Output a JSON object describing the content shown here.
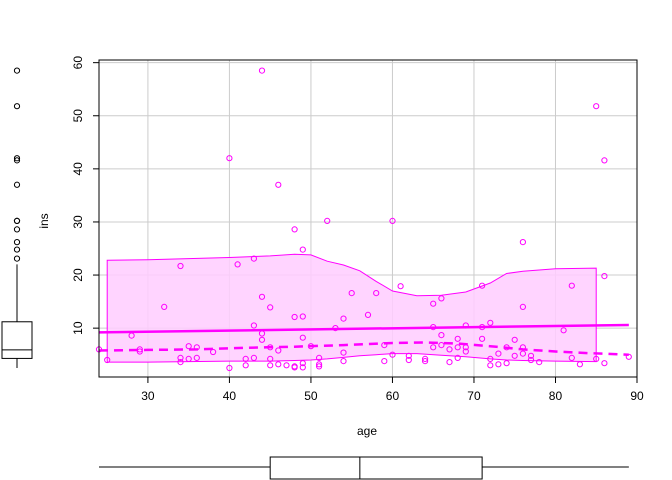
{
  "chart_data": {
    "type": "scatter",
    "title": "",
    "xlabel": "age",
    "ylabel": "ins",
    "xlim": [
      24,
      90
    ],
    "ylim": [
      0.8,
      60.5
    ],
    "xticks": [
      30,
      40,
      50,
      60,
      70,
      80,
      90
    ],
    "yticks": [
      10,
      20,
      30,
      40,
      50,
      60
    ],
    "grid": true,
    "colors": {
      "points": "#ff00ff",
      "band_fill": "#ffccff",
      "band_line": "#ff00ff",
      "axis": "#000000",
      "grid": "#cccccc"
    },
    "points": [
      [
        24,
        6.0
      ],
      [
        25,
        4.0
      ],
      [
        28,
        8.6
      ],
      [
        29,
        5.6
      ],
      [
        29,
        6.0
      ],
      [
        32,
        14.0
      ],
      [
        34,
        21.7
      ],
      [
        34,
        4.4
      ],
      [
        34,
        3.6
      ],
      [
        35,
        6.6
      ],
      [
        35,
        4.2
      ],
      [
        36,
        4.4
      ],
      [
        36,
        6.4
      ],
      [
        38,
        5.5
      ],
      [
        40,
        42.0
      ],
      [
        40,
        2.5
      ],
      [
        41,
        22.0
      ],
      [
        42,
        4.2
      ],
      [
        42,
        3.0
      ],
      [
        43,
        23.1
      ],
      [
        43,
        10.5
      ],
      [
        43,
        4.4
      ],
      [
        44,
        58.5
      ],
      [
        44,
        15.9
      ],
      [
        44,
        9.0
      ],
      [
        44,
        7.8
      ],
      [
        45,
        13.9
      ],
      [
        45,
        6.4
      ],
      [
        45,
        4.2
      ],
      [
        45,
        3.0
      ],
      [
        46,
        37.0
      ],
      [
        46,
        5.8
      ],
      [
        46,
        3.2
      ],
      [
        47,
        3.0
      ],
      [
        48,
        28.6
      ],
      [
        48,
        12.1
      ],
      [
        48,
        2.8
      ],
      [
        48,
        2.6
      ],
      [
        49,
        24.8
      ],
      [
        49,
        12.2
      ],
      [
        49,
        8.2
      ],
      [
        49,
        3.4
      ],
      [
        49,
        2.6
      ],
      [
        50,
        6.6
      ],
      [
        51,
        4.4
      ],
      [
        51,
        3.2
      ],
      [
        51,
        2.8
      ],
      [
        52,
        30.2
      ],
      [
        53,
        10.0
      ],
      [
        54,
        11.8
      ],
      [
        54,
        5.4
      ],
      [
        54,
        3.8
      ],
      [
        55,
        16.6
      ],
      [
        57,
        12.5
      ],
      [
        58,
        16.6
      ],
      [
        59,
        6.8
      ],
      [
        59,
        3.8
      ],
      [
        60,
        30.2
      ],
      [
        60,
        5.0
      ],
      [
        61,
        17.9
      ],
      [
        62,
        4.8
      ],
      [
        62,
        4.0
      ],
      [
        64,
        4.2
      ],
      [
        64,
        3.8
      ],
      [
        65,
        14.6
      ],
      [
        65,
        10.2
      ],
      [
        65,
        6.4
      ],
      [
        66,
        15.6
      ],
      [
        66,
        8.7
      ],
      [
        66,
        6.8
      ],
      [
        67,
        6.0
      ],
      [
        67,
        3.6
      ],
      [
        68,
        8.0
      ],
      [
        68,
        6.4
      ],
      [
        68,
        4.4
      ],
      [
        69,
        10.5
      ],
      [
        69,
        6.4
      ],
      [
        69,
        5.6
      ],
      [
        71,
        18.0
      ],
      [
        71,
        10.2
      ],
      [
        71,
        8.0
      ],
      [
        72,
        11.0
      ],
      [
        72,
        4.2
      ],
      [
        72,
        3.0
      ],
      [
        73,
        5.2
      ],
      [
        73,
        3.2
      ],
      [
        74,
        6.4
      ],
      [
        74,
        3.4
      ],
      [
        75,
        7.8
      ],
      [
        75,
        4.8
      ],
      [
        76,
        26.2
      ],
      [
        76,
        14.0
      ],
      [
        76,
        6.4
      ],
      [
        76,
        5.2
      ],
      [
        77,
        4.8
      ],
      [
        77,
        4.0
      ],
      [
        78,
        3.6
      ],
      [
        81,
        9.6
      ],
      [
        82,
        18.0
      ],
      [
        82,
        4.4
      ],
      [
        83,
        3.2
      ],
      [
        85,
        51.8
      ],
      [
        85,
        4.2
      ],
      [
        86,
        41.6
      ],
      [
        86,
        19.8
      ],
      [
        86,
        3.4
      ],
      [
        89,
        4.6
      ]
    ],
    "linear_fit": {
      "x": [
        24,
        89
      ],
      "y": [
        9.2,
        10.6
      ]
    },
    "smooth_curve": {
      "x": [
        24,
        30,
        36,
        42,
        48,
        54,
        60,
        64,
        68,
        72,
        76,
        80,
        84,
        89
      ],
      "y": [
        5.8,
        5.9,
        6.0,
        6.3,
        6.5,
        6.8,
        7.2,
        7.3,
        7.1,
        6.6,
        6.0,
        5.6,
        5.3,
        5.0
      ]
    },
    "band": {
      "x": [
        25,
        30,
        35,
        40,
        45,
        48,
        50,
        52,
        54,
        56,
        58,
        60,
        63,
        66,
        69,
        72,
        74,
        76,
        80,
        85
      ],
      "upper": [
        22.8,
        22.9,
        23.1,
        23.3,
        23.6,
        23.9,
        23.8,
        22.6,
        21.9,
        20.8,
        18.8,
        17.0,
        16.1,
        16.2,
        16.8,
        18.5,
        20.3,
        20.7,
        21.2,
        21.3
      ],
      "lower": [
        3.6,
        3.6,
        3.7,
        3.8,
        3.8,
        3.9,
        4.0,
        4.2,
        4.5,
        4.8,
        5.0,
        5.2,
        5.2,
        4.9,
        4.6,
        4.2,
        4.0,
        3.9,
        3.8,
        3.7
      ]
    },
    "y_marginal": {
      "outliers": [
        58.5,
        51.8,
        42.0,
        41.6,
        37.0,
        30.2,
        30.2,
        28.6,
        26.2,
        24.8,
        23.1
      ],
      "whisker_low": 2.5,
      "q1": 4.3,
      "median": 5.9,
      "q3": 11.2,
      "whisker_high": 22.0
    },
    "x_marginal": {
      "whisker_low": 24,
      "q1": 45,
      "median": 56,
      "q3": 71,
      "whisker_high": 89
    }
  }
}
